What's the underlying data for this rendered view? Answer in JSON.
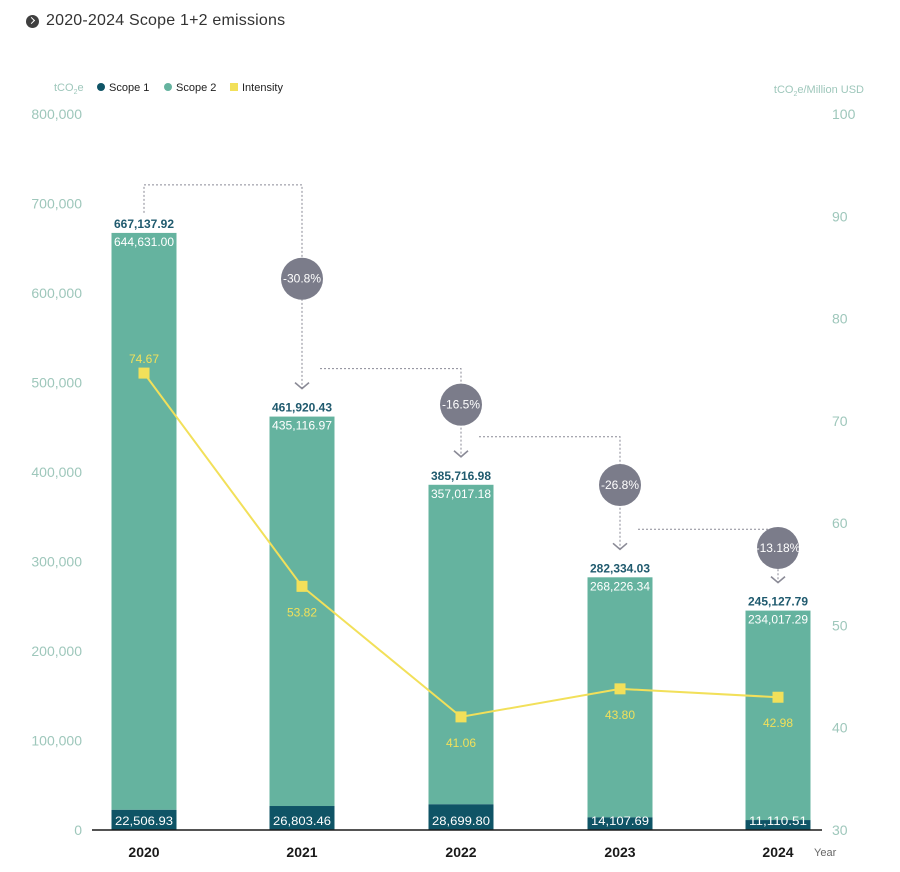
{
  "title": "2020-2024 Scope 1+2 emissions",
  "colors": {
    "scope1": "#0f5466",
    "scope2": "#65b39f",
    "intensity": "#f2e05a",
    "axis_text": "#9ec7bb",
    "arrow": "#8a8a96",
    "bubble": "#7b7c8a",
    "total_label": "#1f5a6e"
  },
  "chart_data": {
    "type": "bar",
    "title": "2020-2024 Scope 1+2 emissions",
    "categories": [
      "2020",
      "2021",
      "2022",
      "2023",
      "2024"
    ],
    "xlabel": "Year",
    "ylabel_left_prefix": "tCO",
    "ylabel_left_sub": "2",
    "ylabel_left_suffix": "e",
    "ylabel_right_prefix": "tCO",
    "ylabel_right_sub": "2",
    "ylabel_right_suffix": "e/Million USD",
    "ylim_left": [
      0,
      800000
    ],
    "ylim_right": [
      30,
      100
    ],
    "left_ticks": [
      "0",
      "100,000",
      "200,000",
      "300,000",
      "400,000",
      "500,000",
      "600,000",
      "700,000",
      "800,000"
    ],
    "left_tick_values": [
      0,
      100000,
      200000,
      300000,
      400000,
      500000,
      600000,
      700000,
      800000
    ],
    "right_ticks": [
      "30",
      "40",
      "50",
      "60",
      "70",
      "80",
      "90",
      "100"
    ],
    "right_tick_values": [
      30,
      40,
      50,
      60,
      70,
      80,
      90,
      100
    ],
    "legend": [
      "Scope 1",
      "Scope 2",
      "Intensity"
    ],
    "series": [
      {
        "name": "Scope 1",
        "values": [
          22506.93,
          26803.46,
          28699.8,
          14107.69,
          11110.51
        ],
        "labels": [
          "22,506.93",
          "26,803.46",
          "28,699.80",
          "14,107.69",
          "11,110.51"
        ]
      },
      {
        "name": "Scope 2",
        "values": [
          644631.0,
          435116.97,
          357017.18,
          268226.34,
          234017.29
        ],
        "labels": [
          "644,631.00",
          "435,116.97",
          "357,017.18",
          "268,226.34",
          "234,017.29"
        ]
      },
      {
        "name": "Intensity",
        "axis": "right",
        "values": [
          74.67,
          53.82,
          41.06,
          43.8,
          42.98
        ],
        "labels": [
          "74.67",
          "53.82",
          "41.06",
          "43.80",
          "42.98"
        ]
      }
    ],
    "totals": [
      667137.92,
      461920.43,
      385716.98,
      282334.03,
      245127.79
    ],
    "total_labels": [
      "667,137.92",
      "461,920.43",
      "385,716.98",
      "282,334.03",
      "245,127.79"
    ],
    "changes": [
      "-30.8%",
      "-16.5%",
      "-26.8%",
      "-13.18%"
    ]
  }
}
